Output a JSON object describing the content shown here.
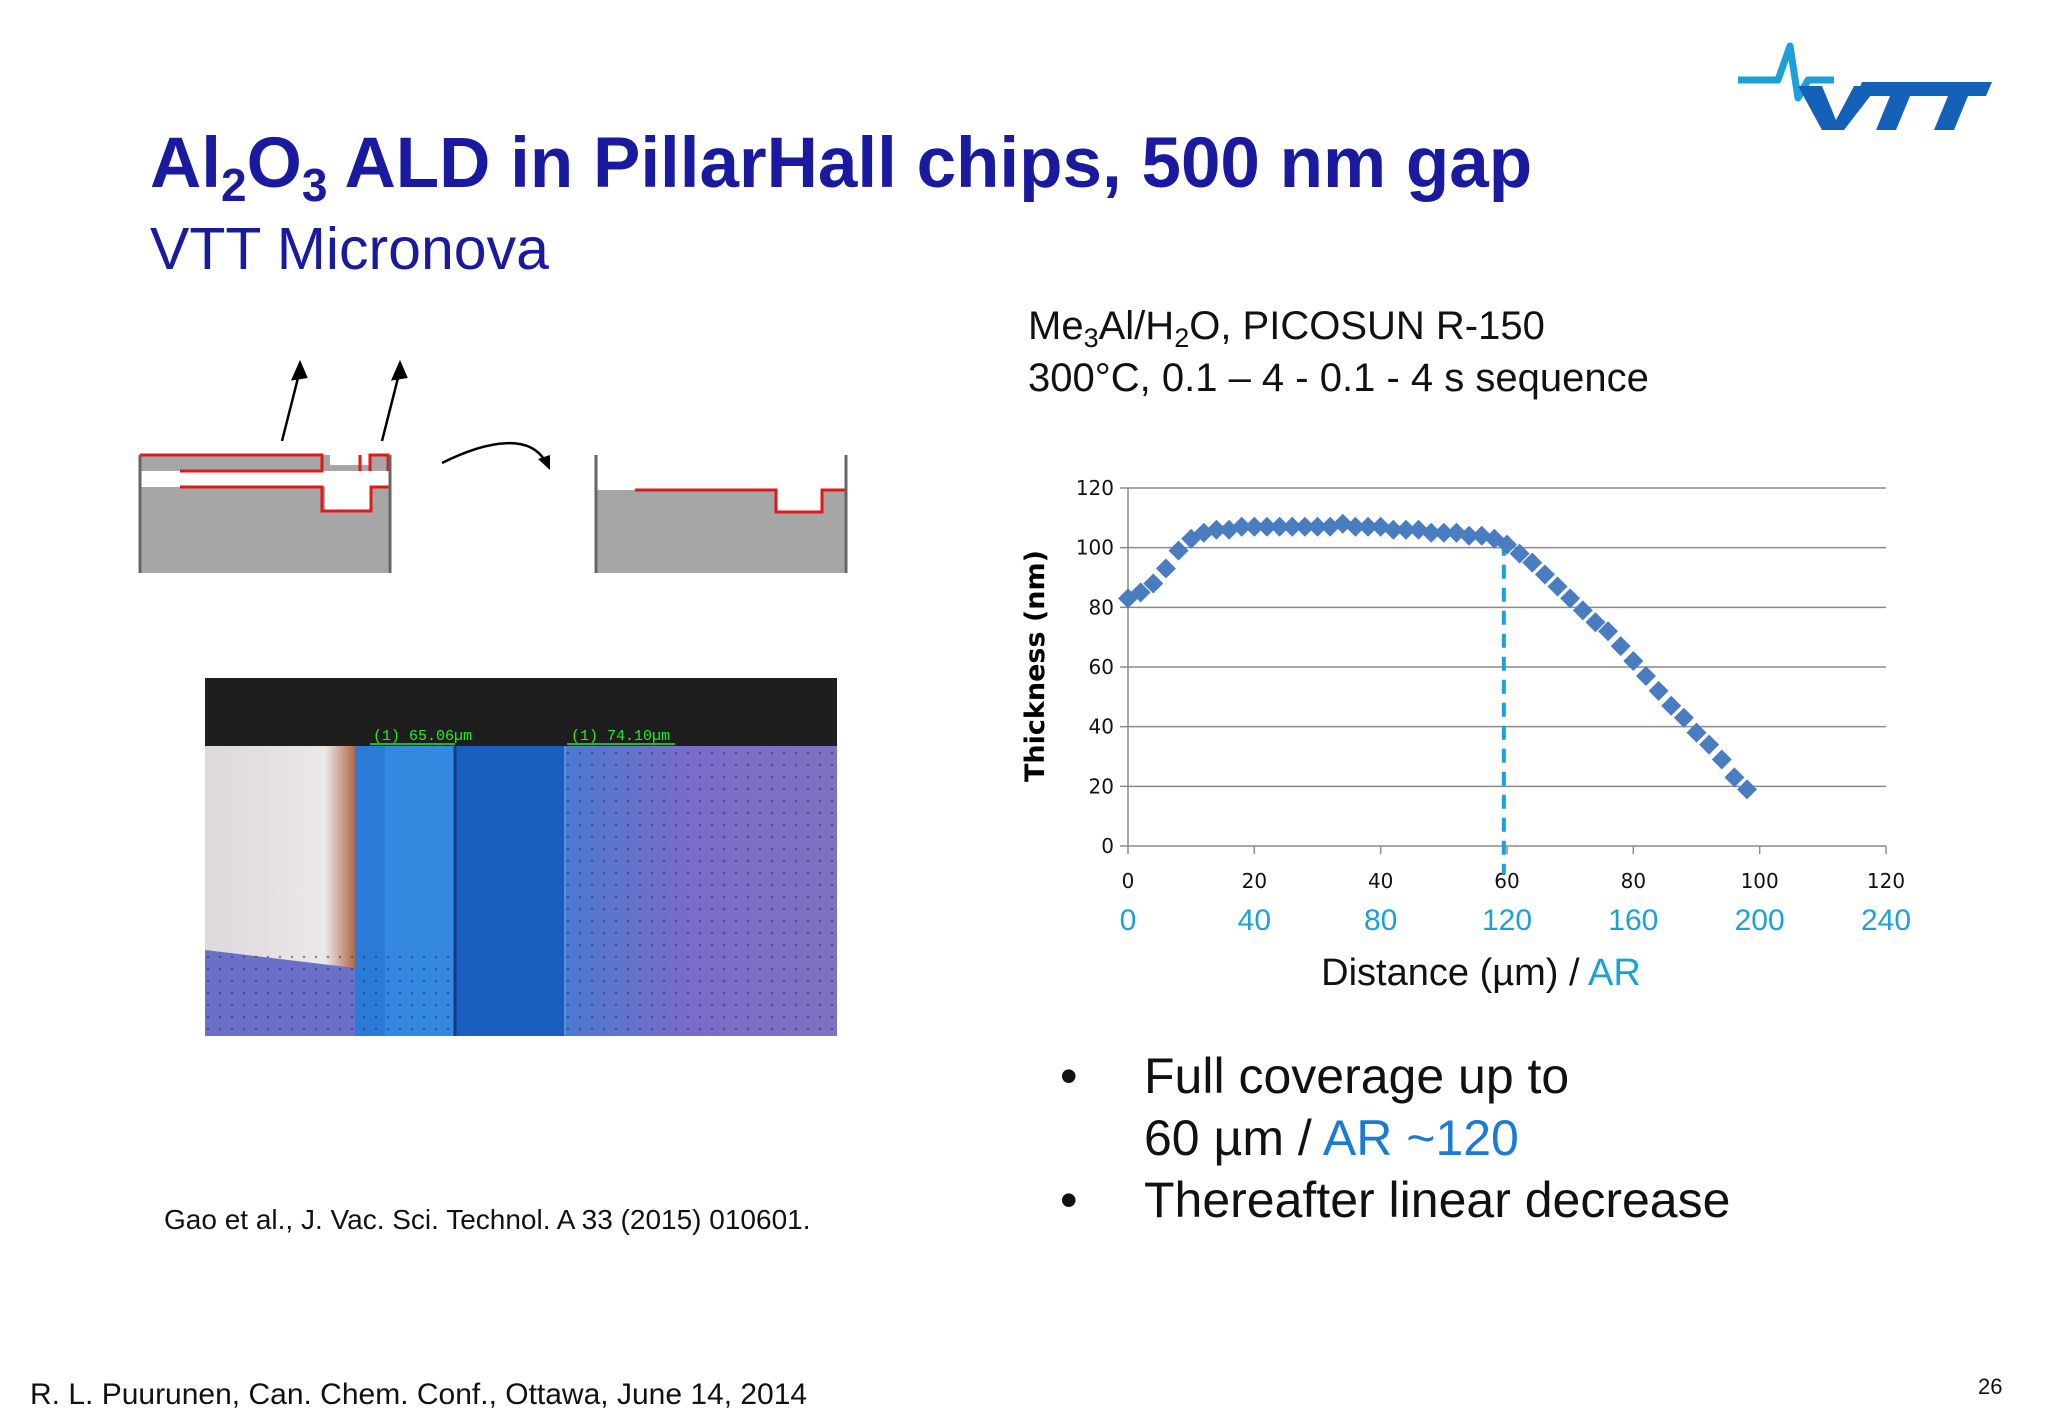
{
  "logo": {
    "text": "VTT",
    "color": "#1560b8"
  },
  "title": {
    "part1": "Al",
    "sub1": "2",
    "part2": "O",
    "sub2": "3",
    "part3": " ALD in PillarHall chips, 500 nm gap"
  },
  "subtitle": "VTT Micronova",
  "conditions": {
    "line1_a": "Me",
    "line1_sub1": "3",
    "line1_b": "Al/H",
    "line1_sub2": "2",
    "line1_c": "O, PICOSUN R-150",
    "line2": "300°C, 0.1 – 4 - 0.1 - 4 s sequence"
  },
  "photo": {
    "label1": "(1) 65.06µm",
    "label2": "(1) 74.10µm"
  },
  "chart_data": {
    "type": "scatter",
    "ylabel": "Thickness (nm)",
    "xlabel": "Distance (µm) / ",
    "xlabel_accent": "AR",
    "xlim": [
      0,
      120
    ],
    "ylim": [
      0,
      120
    ],
    "x_ticks": [
      0,
      20,
      40,
      60,
      80,
      100,
      120
    ],
    "y_ticks": [
      0,
      20,
      40,
      60,
      80,
      100,
      120
    ],
    "ar_ticks": [
      0,
      40,
      80,
      120,
      160,
      200,
      240
    ],
    "grid": true,
    "marker": "diamond",
    "series_color": "#4a7cc2",
    "accent_color": "#1ba1d8",
    "vline_x": 59.5,
    "x": [
      0,
      2,
      4,
      6,
      8,
      10,
      12,
      14,
      16,
      18,
      20,
      22,
      24,
      26,
      28,
      30,
      32,
      34,
      36,
      38,
      40,
      42,
      44,
      46,
      48,
      50,
      52,
      54,
      56,
      58,
      60,
      62,
      64,
      66,
      68,
      70,
      72,
      74,
      76,
      78,
      80,
      82,
      84,
      86,
      88,
      90,
      92,
      94,
      96,
      98
    ],
    "y": [
      83,
      85,
      88,
      93,
      99,
      103,
      105,
      106,
      106,
      107,
      107,
      107,
      107,
      107,
      107,
      107,
      107,
      108,
      107,
      107,
      107,
      106,
      106,
      106,
      105,
      105,
      105,
      104,
      104,
      103,
      101,
      98,
      95,
      91,
      87,
      83,
      79,
      75,
      72,
      67,
      62,
      57,
      52,
      47,
      43,
      38,
      34,
      29,
      23,
      19
    ]
  },
  "bullets": [
    {
      "line1": "Full coverage up to",
      "line2a": "60 µm / ",
      "line2b": "AR ~120"
    },
    {
      "line1": "Thereafter linear decrease"
    }
  ],
  "bullet_symbol": "•",
  "reference": "Gao et al., J. Vac. Sci. Technol. A 33 (2015) 010601.",
  "footer": "R. L. Puurunen, Can. Chem. Conf., Ottawa, June 14, 2014",
  "page_number": "26"
}
